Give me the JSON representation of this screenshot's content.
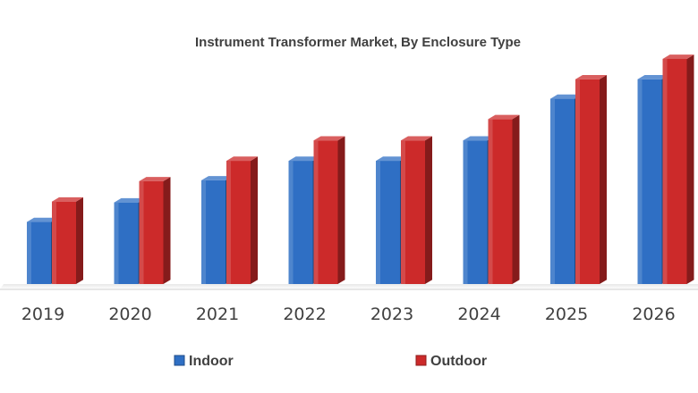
{
  "chart_data": {
    "type": "bar",
    "title": "Instrument Transformer Market, By Enclosure Type",
    "xlabel": "",
    "ylabel": "",
    "categories": [
      "2019",
      "2020",
      "2021",
      "2022",
      "2023",
      "2024",
      "2025",
      "2026"
    ],
    "series": [
      {
        "name": "Indoor",
        "color": "#2f6fc4",
        "values": [
          70,
          92,
          117,
          139,
          139,
          162,
          209,
          231
        ]
      },
      {
        "name": "Outdoor",
        "color": "#cc2a2a",
        "values": [
          93,
          116,
          139,
          162,
          162,
          186,
          231,
          254
        ]
      }
    ],
    "ylim": [
      0,
      260
    ],
    "grid": false,
    "legend_position": "bottom",
    "style": "3d-bar"
  }
}
